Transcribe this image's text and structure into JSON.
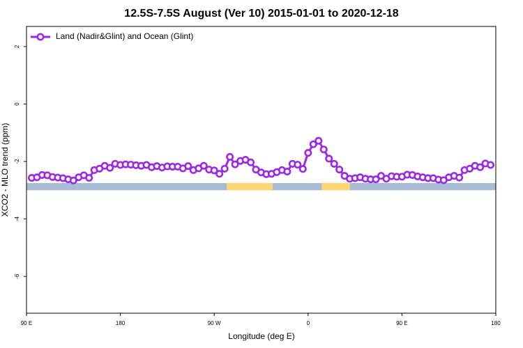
{
  "chart_data": {
    "type": "line",
    "title": "12.5S-7.5S August (Ver 10)   2015-01-01 to 2020-12-18",
    "x_label": "Longitude (deg E)",
    "y_label": "XCO2 - MLO trend (ppm)",
    "x": [
      95,
      100,
      105,
      110,
      115,
      120,
      125,
      130,
      135,
      140,
      145,
      150,
      155,
      160,
      165,
      170,
      175,
      180,
      185,
      190,
      195,
      200,
      205,
      210,
      215,
      220,
      225,
      230,
      235,
      240,
      245,
      250,
      255,
      260,
      265,
      270,
      275,
      280,
      285,
      290,
      295,
      300,
      305,
      310,
      315,
      320,
      325,
      330,
      335,
      340,
      345,
      350,
      355,
      360,
      365,
      370,
      375,
      380,
      385,
      390,
      395,
      400,
      405,
      410,
      415,
      420,
      425,
      430,
      435,
      440,
      445,
      450,
      455,
      460,
      465,
      470,
      475,
      480,
      485,
      490,
      495,
      500,
      505,
      510,
      515,
      520,
      525,
      530,
      535
    ],
    "series": [
      {
        "name": "Land (Nadir&Glint) and Ocean (Glint)",
        "color": "#9b28e6",
        "values": [
          -2.57,
          -2.55,
          -2.47,
          -2.48,
          -2.54,
          -2.56,
          -2.58,
          -2.62,
          -2.66,
          -2.55,
          -2.48,
          -2.57,
          -2.3,
          -2.25,
          -2.15,
          -2.22,
          -2.08,
          -2.12,
          -2.1,
          -2.11,
          -2.13,
          -2.15,
          -2.12,
          -2.2,
          -2.16,
          -2.21,
          -2.17,
          -2.18,
          -2.18,
          -2.24,
          -2.16,
          -2.3,
          -2.24,
          -2.15,
          -2.28,
          -2.31,
          -2.43,
          -2.25,
          -1.84,
          -2.1,
          -1.98,
          -1.94,
          -2.03,
          -2.28,
          -2.38,
          -2.44,
          -2.43,
          -2.37,
          -2.3,
          -2.35,
          -2.08,
          -2.11,
          -2.26,
          -1.7,
          -1.4,
          -1.28,
          -1.58,
          -1.9,
          -2.08,
          -2.28,
          -2.5,
          -2.6,
          -2.58,
          -2.55,
          -2.6,
          -2.62,
          -2.62,
          -2.5,
          -2.6,
          -2.51,
          -2.53,
          -2.53,
          -2.46,
          -2.47,
          -2.52,
          -2.55,
          -2.58,
          -2.58,
          -2.63,
          -2.65,
          -2.55,
          -2.5,
          -2.56,
          -2.3,
          -2.25,
          -2.15,
          -2.2,
          -2.07,
          -2.12
        ]
      }
    ],
    "surface_band": {
      "range": [
        -3.0,
        -2.75
      ],
      "ocean_color": "#a8bcd6",
      "land_color": "#fcd773",
      "land": [
        [
          282,
          326
        ],
        [
          373,
          400
        ]
      ]
    },
    "xlim": [
      90,
      540
    ],
    "xticks": [
      {
        "value": 90,
        "label": "90 E"
      },
      {
        "value": 180,
        "label": "180"
      },
      {
        "value": 270,
        "label": "90 W"
      },
      {
        "value": 360,
        "label": "0"
      },
      {
        "value": 450,
        "label": "90 E"
      },
      {
        "value": 540,
        "label": "180"
      }
    ],
    "ylim": [
      -7.28,
      2.7
    ],
    "yticks": [
      -6,
      -4,
      -2,
      0,
      2
    ],
    "legend": "top-left"
  }
}
